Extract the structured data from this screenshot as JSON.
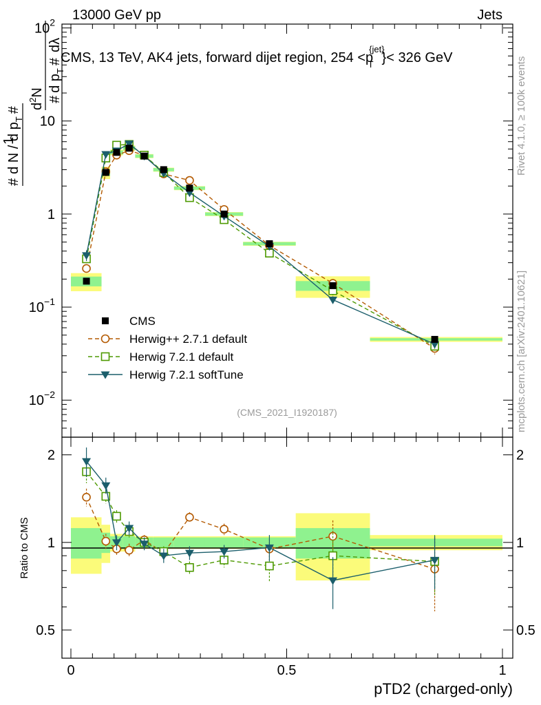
{
  "header": {
    "left": "13000 GeV pp",
    "right": "Jets"
  },
  "chart_data": {
    "type": "line",
    "title": "CMS, 13 TeV, AK4 jets, forward dijet region, 254 < p_T^{jet} < 326 GeV",
    "title_parts": {
      "prefix": "CMS, 13 TeV, AK4 jets, forward dijet region, 254 <p",
      "sup": "{jet}",
      "sub": "T",
      "suffix": "}< 326 GeV"
    },
    "analysis_id": "(CMS_2021_I1920187)",
    "side_label_top": "Rivet 4.1.0, ≥ 100k events",
    "side_label_bottom": "mcplots.cern.ch [arXiv:2401.10621]",
    "xlabel": "pTD2 (charged-only)",
    "ylabel": "# 1/(dN / d p_T #) d²N/(d p_T dλ)",
    "ylabel_ratio": "Ratio to CMS",
    "xlim": [
      0,
      1
    ],
    "ylim_main": [
      0.004,
      110
    ],
    "ylim_ratio": [
      0.4,
      2.3
    ],
    "xscale": "linear",
    "yscale_main": "log",
    "yscale_ratio": "log",
    "x_ticks": [
      {
        "value": 0,
        "label": "0"
      },
      {
        "value": 0.5,
        "label": "0.5"
      },
      {
        "value": 1,
        "label": "1"
      }
    ],
    "y_ticks_main": [
      {
        "value": 0.01,
        "base": "10",
        "exp": "−2"
      },
      {
        "value": 0.1,
        "base": "10",
        "exp": "−1"
      },
      {
        "value": 1,
        "base": "1",
        "exp": ""
      },
      {
        "value": 10,
        "base": "10",
        "exp": ""
      },
      {
        "value": 100,
        "base": "10",
        "exp": "2"
      }
    ],
    "y_ticks_ratio": [
      {
        "value": 0.5,
        "label": "0.5"
      },
      {
        "value": 1,
        "label": "1"
      },
      {
        "value": 2,
        "label": "2"
      }
    ],
    "x": [
      0.036,
      0.081,
      0.106,
      0.135,
      0.17,
      0.215,
      0.275,
      0.355,
      0.46,
      0.607,
      0.843
    ],
    "bins": [
      [
        0.0,
        0.071
      ],
      [
        0.071,
        0.091
      ],
      [
        0.091,
        0.121
      ],
      [
        0.121,
        0.149
      ],
      [
        0.149,
        0.191
      ],
      [
        0.191,
        0.239
      ],
      [
        0.239,
        0.311
      ],
      [
        0.311,
        0.399
      ],
      [
        0.399,
        0.521
      ],
      [
        0.521,
        0.693
      ],
      [
        0.693,
        1.0
      ]
    ],
    "cms": {
      "name": "CMS",
      "color": "#000000",
      "values": [
        0.19,
        2.8,
        4.6,
        5.1,
        4.2,
        3.0,
        1.9,
        1.0,
        0.48,
        0.17,
        0.045
      ],
      "band_inner": [
        0.12,
        0.08,
        0.05,
        0.05,
        0.04,
        0.04,
        0.04,
        0.04,
        0.04,
        0.12,
        0.03
      ],
      "band_outer": [
        0.22,
        0.15,
        0.07,
        0.07,
        0.05,
        0.05,
        0.05,
        0.05,
        0.05,
        0.26,
        0.06
      ]
    },
    "series": [
      {
        "name": "Herwig++ 2.7.1 default",
        "color": "#b35900",
        "marker": "circle-open",
        "dash": "6,4",
        "values": [
          0.26,
          2.85,
          4.3,
          4.8,
          4.3,
          2.7,
          2.3,
          1.12,
          0.46,
          0.18,
          0.036
        ],
        "ratio": [
          1.43,
          1.01,
          0.95,
          0.94,
          1.02,
          0.92,
          1.22,
          1.11,
          0.95,
          1.05,
          0.81
        ],
        "ratio_err": [
          0.1,
          0.06,
          0.05,
          0.05,
          0.04,
          0.04,
          0.05,
          0.05,
          0.08,
          0.14,
          0.23
        ]
      },
      {
        "name": "Herwig 7.2.1 default",
        "color": "#4d9900",
        "marker": "square-open",
        "dash": "6,4",
        "values": [
          0.33,
          4.0,
          5.5,
          5.6,
          4.3,
          2.8,
          1.5,
          0.87,
          0.38,
          0.15,
          0.038
        ],
        "ratio": [
          1.75,
          1.44,
          1.23,
          1.09,
          1.0,
          0.93,
          0.82,
          0.87,
          0.83,
          0.9,
          0.86
        ],
        "ratio_err": [
          0.15,
          0.08,
          0.06,
          0.05,
          0.04,
          0.04,
          0.04,
          0.05,
          0.1,
          0.18,
          0.2
        ]
      },
      {
        "name": "Herwig 7.2.1 softTune",
        "color": "#1b5e6b",
        "marker": "triangle-down",
        "dash": "",
        "values": [
          0.36,
          4.4,
          4.8,
          5.7,
          4.2,
          2.75,
          1.7,
          0.95,
          0.45,
          0.12,
          0.04
        ],
        "ratio": [
          1.9,
          1.57,
          1.0,
          1.12,
          0.99,
          0.9,
          0.92,
          0.93,
          0.96,
          0.74,
          0.87
        ],
        "ratio_err": [
          0.22,
          0.1,
          0.06,
          0.06,
          0.05,
          0.05,
          0.05,
          0.05,
          0.1,
          0.15,
          0.18
        ]
      }
    ],
    "legend_position": "lower-left"
  }
}
